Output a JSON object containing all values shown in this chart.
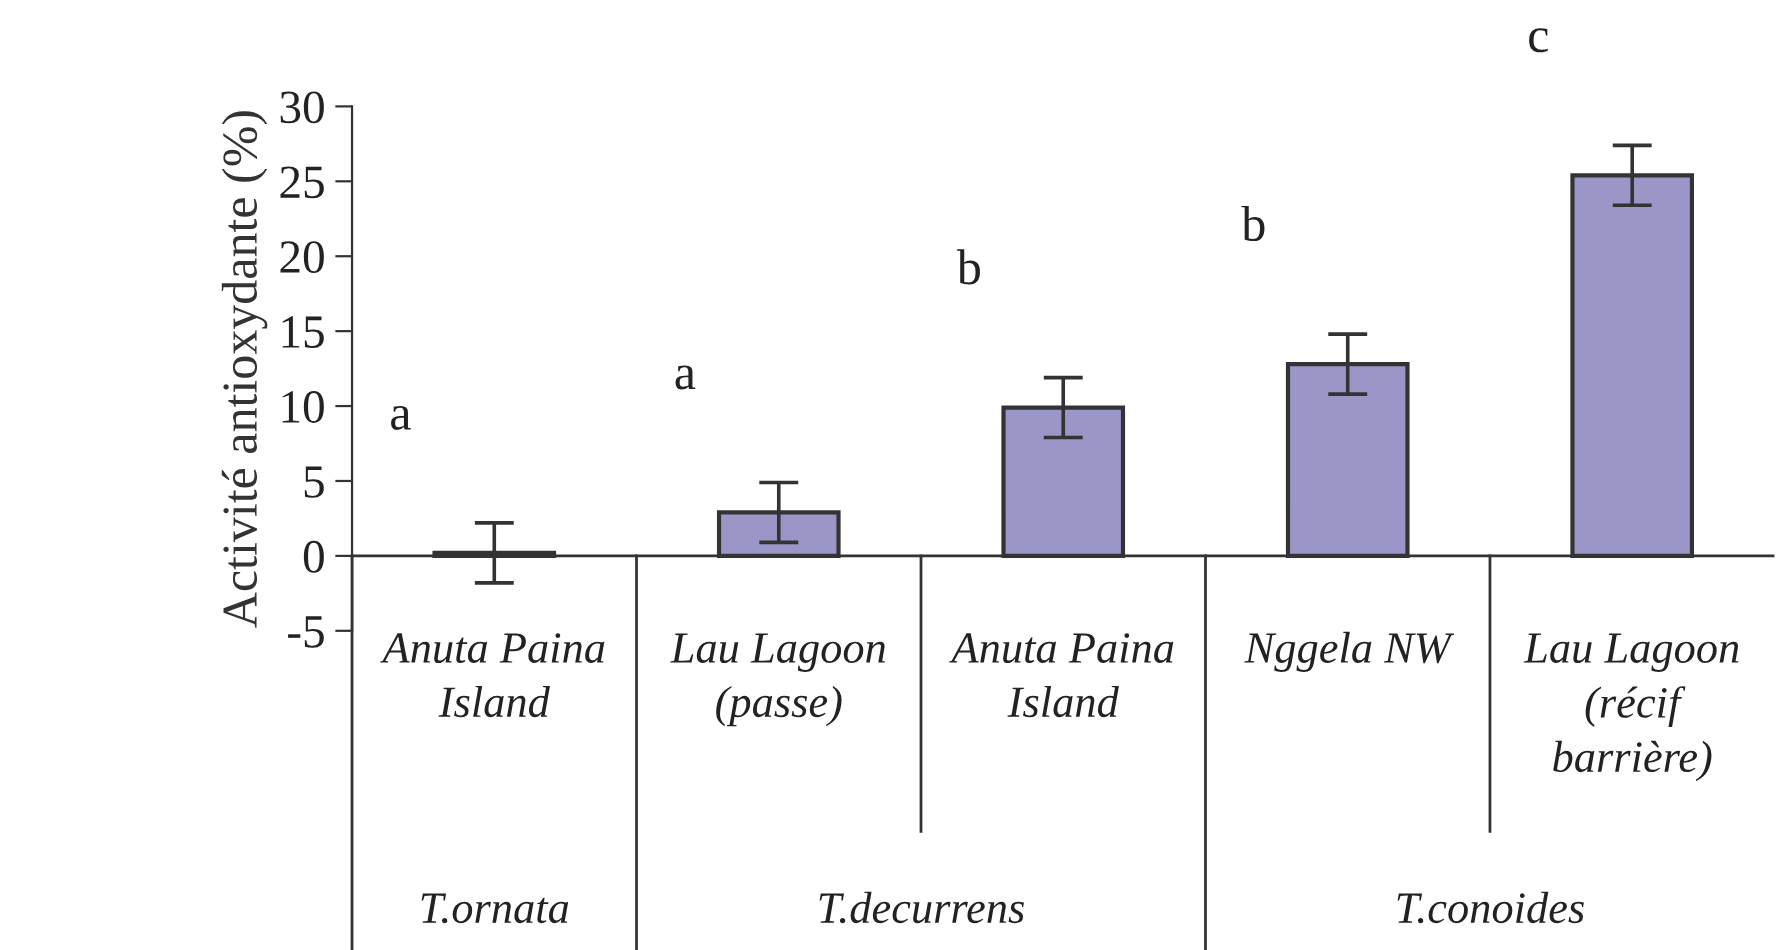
{
  "chart_data": {
    "type": "bar",
    "ylabel": "Activité antioxydante (%)",
    "categories": [
      "Anuta Paina\nIsland",
      "Lau Lagoon\n(passe)",
      "Anuta Paina\nIsland",
      "Nggela NW",
      "Lau Lagoon\n(récif\nbarrière)"
    ],
    "values": [
      0.2,
      2.9,
      9.9,
      12.8,
      25.4
    ],
    "errors": [
      2.0,
      2.0,
      2.0,
      2.0,
      2.0
    ],
    "color": "#9b96c8",
    "ylim": [
      -5,
      30
    ],
    "yticks": [
      -5,
      0,
      5,
      10,
      15,
      20,
      25,
      30
    ],
    "grid": false,
    "legend": false,
    "annotations": [
      "a",
      "a",
      "b",
      "b",
      "c",
      "T.ornata",
      "T.decurrens",
      "T.conoides"
    ]
  }
}
